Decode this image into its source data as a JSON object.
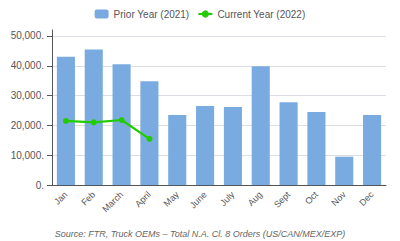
{
  "chart_data": {
    "type": "bar",
    "categories": [
      "Jan",
      "Feb",
      "March",
      "April",
      "May",
      "June",
      "July",
      "Aug",
      "Sept",
      "Oct",
      "Nov",
      "Dec"
    ],
    "series": [
      {
        "name": "Prior Year (2021)",
        "type": "bar",
        "color": "#7aabe0",
        "values": [
          43000,
          45500,
          40500,
          34800,
          23500,
          26500,
          26200,
          39800,
          27800,
          24500,
          9500,
          23500
        ]
      },
      {
        "name": "Current Year (2022)",
        "type": "line",
        "color": "#22cc00",
        "marker": "circle",
        "values": [
          21500,
          21000,
          21800,
          15500,
          null,
          null,
          null,
          null,
          null,
          null,
          null,
          null
        ]
      }
    ],
    "ylim": [
      0,
      52000
    ],
    "yticks": [
      {
        "value": 0,
        "label": "0."
      },
      {
        "value": 10000,
        "label": "10,000."
      },
      {
        "value": 20000,
        "label": "20,000."
      },
      {
        "value": 30000,
        "label": "30,000."
      },
      {
        "value": 40000,
        "label": "40,000."
      },
      {
        "value": 50000,
        "label": "50,000."
      }
    ],
    "grid": true,
    "legend": "top",
    "annotations": [
      "Source: FTR, Truck OEMs – Total N.A. Cl. 8 Orders (US/CAN/MEX/EXP)"
    ]
  }
}
